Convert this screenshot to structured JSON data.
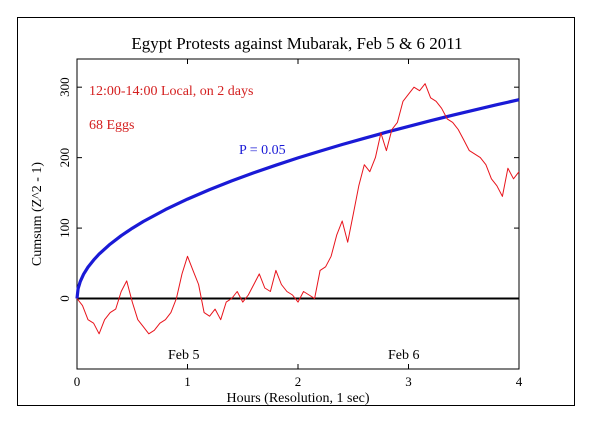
{
  "chart_data": {
    "type": "line",
    "title": "Egypt Protests against Mubarak, Feb 5 & 6 2011",
    "xlabel": "Hours (Resolution, 1 sec)",
    "ylabel": "Cumsum (Z^2 - 1)",
    "xlim": [
      0,
      4
    ],
    "ylim": [
      -100,
      340
    ],
    "x_ticks": [
      0,
      1,
      2,
      3,
      4
    ],
    "y_ticks": [
      0,
      100,
      200,
      300
    ],
    "grid": false,
    "annotations": {
      "line1": "12:00-14:00 Local, on 2 days",
      "line2": "68 Eggs",
      "p_label": "P = 0.05",
      "day1": "Feb 5",
      "day2": "Feb 6"
    },
    "colors": {
      "cumsum": "#e8141c",
      "p_curve": "#1a1ad6",
      "baseline": "#000000",
      "annotation": "#d42020",
      "p_label": "#1a1ad6"
    },
    "series": [
      {
        "x": [
          0,
          0.05,
          0.1,
          0.15,
          0.2,
          0.25,
          0.3,
          0.35,
          0.4,
          0.45,
          0.5,
          0.55,
          0.6,
          0.65,
          0.7,
          0.75,
          0.8,
          0.85,
          0.9,
          0.95,
          1.0,
          1.05,
          1.1,
          1.15,
          1.2,
          1.25,
          1.3,
          1.35,
          1.4,
          1.45,
          1.5,
          1.55,
          1.6,
          1.65,
          1.7,
          1.75,
          1.8,
          1.85,
          1.9,
          1.95,
          2.0,
          2.05,
          2.1,
          2.15,
          2.2,
          2.25,
          2.3,
          2.35,
          2.4,
          2.45,
          2.5,
          2.55,
          2.6,
          2.65,
          2.7,
          2.75,
          2.8,
          2.85,
          2.9,
          2.95,
          3.0,
          3.05,
          3.1,
          3.15,
          3.2,
          3.25,
          3.3,
          3.35,
          3.4,
          3.45,
          3.5,
          3.55,
          3.6,
          3.65,
          3.7,
          3.75,
          3.8,
          3.85,
          3.9,
          3.95,
          4.0
        ],
        "values": [
          0,
          -10,
          -30,
          -35,
          -50,
          -30,
          -20,
          -15,
          10,
          25,
          -5,
          -30,
          -40,
          -50,
          -45,
          -35,
          -30,
          -20,
          0,
          35,
          60,
          40,
          20,
          -20,
          -25,
          -15,
          -30,
          -5,
          0,
          10,
          -5,
          5,
          20,
          35,
          15,
          10,
          40,
          20,
          10,
          5,
          -5,
          10,
          5,
          0,
          40,
          45,
          60,
          90,
          110,
          80,
          120,
          160,
          190,
          180,
          200,
          235,
          210,
          240,
          250,
          280,
          290,
          300,
          295,
          305,
          285,
          280,
          270,
          255,
          250,
          240,
          225,
          210,
          205,
          200,
          190,
          170,
          160,
          145,
          185,
          170,
          180
        ]
      },
      {
        "name": "P = 0.05",
        "x": [
          0,
          0.01,
          0.03,
          0.06,
          0.1,
          0.15,
          0.2,
          0.3,
          0.4,
          0.5,
          0.6,
          0.8,
          1.0,
          1.2,
          1.4,
          1.6,
          1.8,
          2.0,
          2.2,
          2.4,
          2.6,
          2.8,
          3.0,
          3.2,
          3.4,
          3.6,
          3.8,
          4.0
        ],
        "values": [
          0,
          14.1,
          24.4,
          34.6,
          44.6,
          54.6,
          63.1,
          77.3,
          89.2,
          99.8,
          109.3,
          126.2,
          141.1,
          154.6,
          167.0,
          178.5,
          189.3,
          199.6,
          209.3,
          218.6,
          227.5,
          236.1,
          244.4,
          252.4,
          260.2,
          267.7,
          275.1,
          282.2
        ]
      }
    ]
  }
}
